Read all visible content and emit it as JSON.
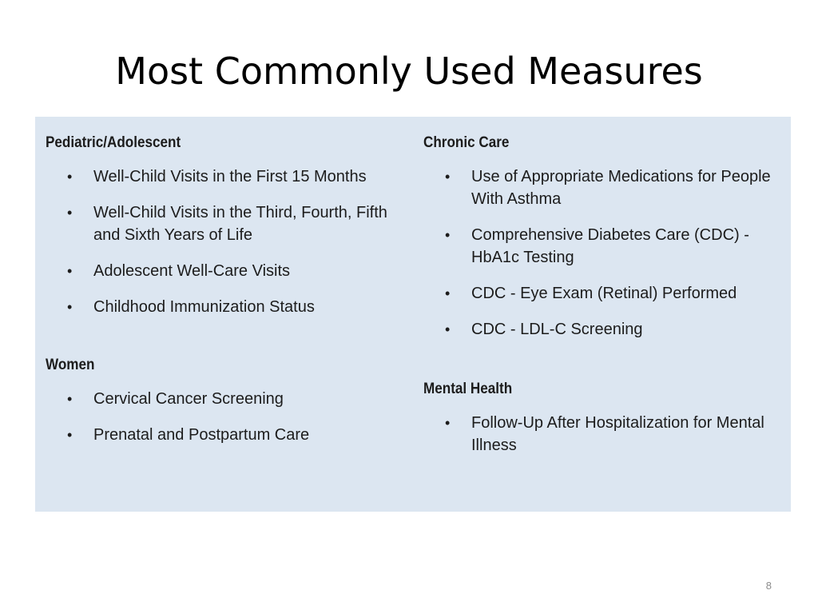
{
  "slide": {
    "title": "Most Commonly Used Measures",
    "page_number": "8"
  },
  "left_column": {
    "sections": [
      {
        "heading": "Pediatric/Adolescent",
        "items": [
          "Well-Child Visits in the First 15 Months",
          "Well-Child Visits in the Third, Fourth, Fifth and Sixth Years of Life",
          "Adolescent Well-Care Visits",
          "Childhood Immunization Status"
        ]
      },
      {
        "heading": "Women",
        "items": [
          "Cervical Cancer Screening",
          "Prenatal and Postpartum Care"
        ]
      }
    ]
  },
  "right_column": {
    "sections": [
      {
        "heading": "Chronic Care",
        "items": [
          "Use of Appropriate Medications for People With Asthma",
          "Comprehensive Diabetes Care (CDC) - HbA1c Testing",
          "CDC - Eye Exam (Retinal) Performed",
          "CDC - LDL-C Screening"
        ]
      },
      {
        "heading": "Mental Health",
        "items": [
          "Follow-Up After Hospitalization for Mental Illness"
        ]
      }
    ]
  },
  "bullet_char": "•"
}
